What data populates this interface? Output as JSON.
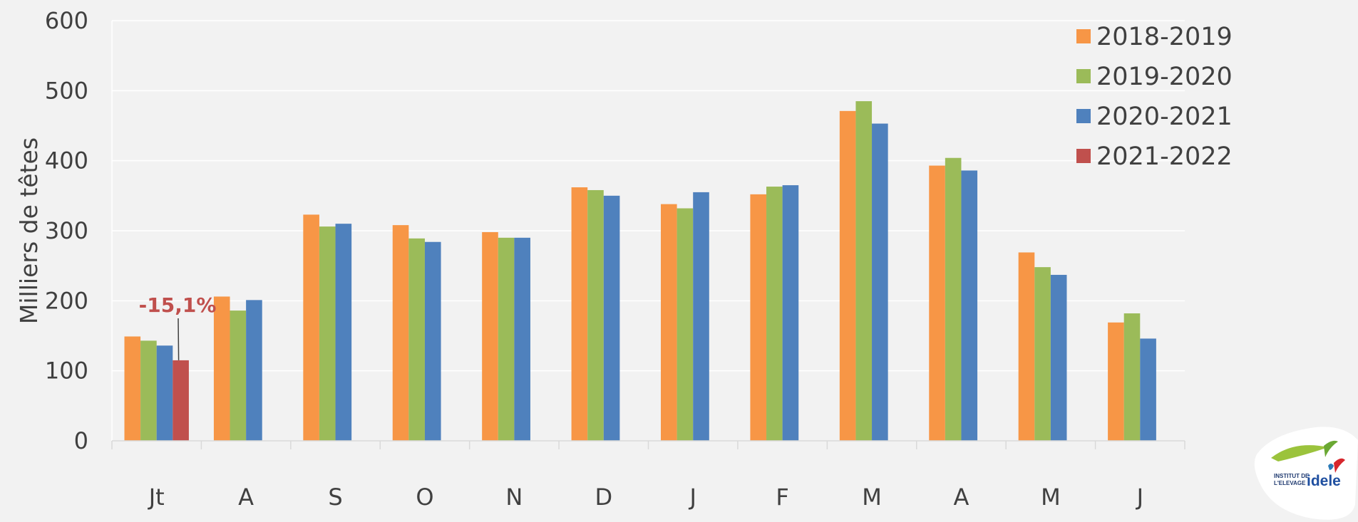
{
  "chart_data": {
    "type": "bar",
    "title": "",
    "xlabel": "",
    "ylabel": "Milliers de têtes",
    "ylim": [
      0,
      600
    ],
    "yticks": [
      0,
      100,
      200,
      300,
      400,
      500,
      600
    ],
    "grid": true,
    "legend_position": "top-right",
    "categories": [
      "Jt",
      "A",
      "S",
      "O",
      "N",
      "D",
      "J",
      "F",
      "M",
      "A",
      "M",
      "J"
    ],
    "series": [
      {
        "name": "2018-2019",
        "color": "#f79646",
        "values": [
          149,
          206,
          323,
          308,
          298,
          362,
          338,
          352,
          471,
          393,
          269,
          169
        ]
      },
      {
        "name": "2019-2020",
        "color": "#9bbb59",
        "values": [
          143,
          186,
          306,
          289,
          290,
          358,
          332,
          363,
          485,
          404,
          248,
          182
        ]
      },
      {
        "name": "2020-2021",
        "color": "#4f81bd",
        "values": [
          136,
          201,
          310,
          284,
          290,
          350,
          355,
          365,
          453,
          386,
          237,
          146
        ]
      },
      {
        "name": "2021-2022",
        "color": "#c0504d",
        "values": [
          115,
          null,
          null,
          null,
          null,
          null,
          null,
          null,
          null,
          null,
          null,
          null
        ]
      }
    ],
    "annotation": {
      "text": "-15,1%",
      "category": "Jt",
      "series": "2021-2022"
    }
  },
  "logo": {
    "line1": "INSTITUT DE",
    "line2": "L'ELEVAGE",
    "brand": "idele"
  }
}
